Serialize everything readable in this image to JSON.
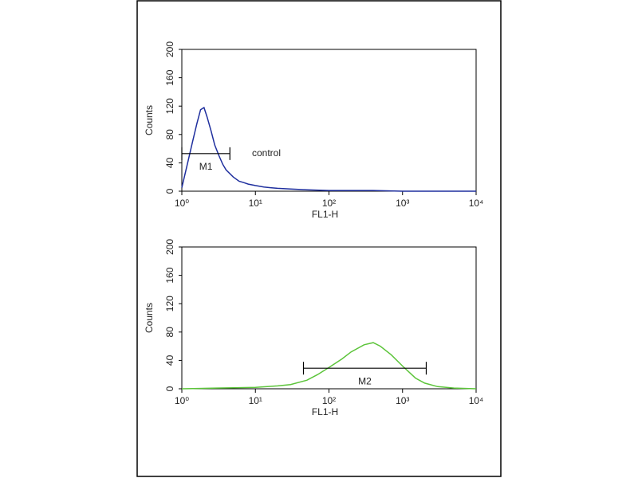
{
  "chart_data": [
    {
      "type": "line",
      "xscale": "log",
      "color": "#1f2f9e",
      "x_label": "FL1-H",
      "y_label": "Counts",
      "xlim": [
        1,
        10000
      ],
      "xticks": [
        {
          "value": 1,
          "label": "10⁰"
        },
        {
          "value": 10,
          "label": "10¹"
        },
        {
          "value": 100,
          "label": "10²"
        },
        {
          "value": 1000,
          "label": "10³"
        },
        {
          "value": 10000,
          "label": "10⁴"
        }
      ],
      "ylim": [
        0,
        200
      ],
      "yticks": [
        0,
        40,
        80,
        120,
        160,
        200
      ],
      "x": [
        1,
        1.2,
        1.4,
        1.6,
        1.8,
        2,
        2.2,
        2.5,
        2.8,
        3.2,
        3.6,
        4,
        5,
        6,
        7,
        8,
        10,
        13,
        16,
        20,
        30,
        50,
        100,
        200,
        400,
        1000,
        2000,
        5000,
        10000
      ],
      "series": [
        {
          "color": "#1f2f9e",
          "values": [
            5,
            40,
            70,
            95,
            115,
            118,
            105,
            85,
            65,
            50,
            38,
            30,
            20,
            14,
            12,
            10,
            8,
            6,
            5,
            4,
            3,
            2,
            1,
            1,
            1,
            0,
            0,
            0,
            0
          ]
        }
      ],
      "markers": [
        {
          "label": "M1",
          "start": 1,
          "end": 4.5,
          "y": 53
        }
      ],
      "annotation": "control"
    },
    {
      "type": "line",
      "xscale": "log",
      "color": "#5cc43a",
      "x_label": "FL1-H",
      "y_label": "Counts",
      "xlim": [
        1,
        10000
      ],
      "xticks": [
        {
          "value": 1,
          "label": "10⁰"
        },
        {
          "value": 10,
          "label": "10¹"
        },
        {
          "value": 100,
          "label": "10²"
        },
        {
          "value": 1000,
          "label": "10³"
        },
        {
          "value": 10000,
          "label": "10⁴"
        }
      ],
      "ylim": [
        0,
        200
      ],
      "yticks": [
        0,
        40,
        80,
        120,
        160,
        200
      ],
      "x": [
        1,
        3,
        10,
        20,
        30,
        50,
        70,
        100,
        150,
        200,
        300,
        400,
        500,
        700,
        1000,
        1500,
        2000,
        3000,
        5000,
        10000
      ],
      "series": [
        {
          "color": "#5cc43a",
          "values": [
            0,
            1,
            2,
            4,
            6,
            12,
            20,
            30,
            42,
            52,
            62,
            65,
            60,
            48,
            32,
            15,
            8,
            3,
            1,
            0
          ]
        }
      ],
      "markers": [
        {
          "label": "M2",
          "start": 45,
          "end": 2100,
          "y": 29
        }
      ]
    }
  ]
}
